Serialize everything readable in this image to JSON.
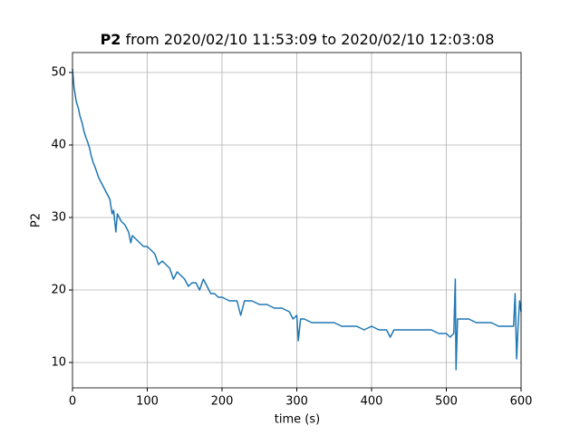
{
  "chart_data": {
    "type": "line",
    "title": [
      "P2",
      "from 2020/02/10 11:53:09 to 2020/02/10 12:03:08"
    ],
    "x_label": "time (s)",
    "y_label": "P2",
    "xlim": [
      0,
      600
    ],
    "ylim": [
      6.5,
      52.75
    ],
    "xticks": [
      0,
      100,
      200,
      300,
      400,
      500,
      600
    ],
    "yticks": [
      10,
      20,
      30,
      40,
      50
    ],
    "grid": true,
    "x": [
      0,
      2,
      5,
      8,
      10,
      13,
      15,
      18,
      20,
      23,
      25,
      28,
      30,
      35,
      40,
      45,
      50,
      53,
      55,
      58,
      60,
      65,
      70,
      75,
      78,
      80,
      85,
      90,
      95,
      100,
      105,
      110,
      115,
      120,
      125,
      130,
      135,
      140,
      145,
      150,
      155,
      160,
      165,
      170,
      175,
      180,
      185,
      190,
      195,
      200,
      210,
      220,
      225,
      230,
      240,
      250,
      260,
      270,
      280,
      290,
      295,
      300,
      302,
      305,
      310,
      320,
      330,
      340,
      350,
      360,
      370,
      380,
      390,
      400,
      410,
      420,
      425,
      430,
      440,
      450,
      460,
      470,
      480,
      490,
      500,
      505,
      510,
      512,
      513,
      515,
      520,
      530,
      540,
      550,
      560,
      570,
      580,
      590,
      592,
      594,
      596,
      598,
      600
    ],
    "series": [
      {
        "name": "P2",
        "color": "#1f77b4",
        "values": [
          50.5,
          48,
          46,
          45,
          44,
          43,
          42,
          41,
          40.5,
          39.5,
          38.5,
          37.5,
          37,
          35.5,
          34.5,
          33.5,
          32.5,
          30.5,
          31,
          28,
          30.5,
          29.5,
          29,
          28,
          26.5,
          27.5,
          27,
          26.5,
          26,
          26,
          25.5,
          25,
          23.5,
          24,
          23.5,
          23,
          21.5,
          22.5,
          22,
          21.5,
          20.5,
          21,
          21,
          20,
          21.5,
          20.5,
          19.5,
          19.5,
          19,
          19,
          18.5,
          18.5,
          16.5,
          18.5,
          18.5,
          18,
          18,
          17.5,
          17.5,
          17,
          16,
          16.5,
          13,
          16,
          16,
          15.5,
          15.5,
          15.5,
          15.5,
          15,
          15,
          15,
          14.5,
          15,
          14.5,
          14.5,
          13.5,
          14.5,
          14.5,
          14.5,
          14.5,
          14.5,
          14.5,
          14,
          14,
          13.5,
          14,
          21.5,
          9,
          16,
          16,
          16,
          15.5,
          15.5,
          15.5,
          15,
          15,
          15,
          19.5,
          10.5,
          15,
          18.5,
          17
        ]
      }
    ]
  }
}
